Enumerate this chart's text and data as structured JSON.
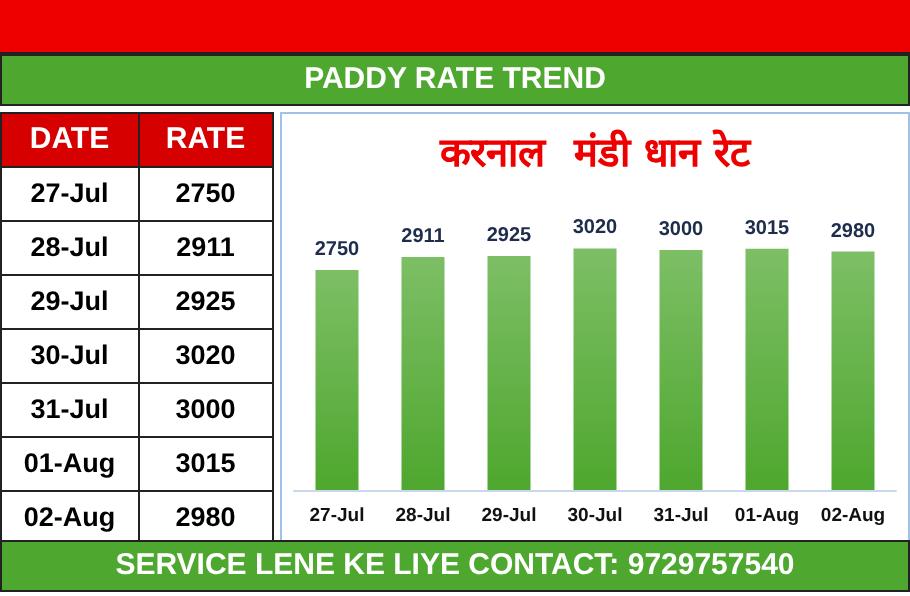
{
  "chart_data": {
    "type": "bar",
    "title": "PADDY RATE TREND",
    "subtitle": "करनाल  मंडी धान रेट",
    "categories": [
      "27-Jul",
      "28-Jul",
      "29-Jul",
      "30-Jul",
      "31-Jul",
      "01-Aug",
      "02-Aug"
    ],
    "values": [
      2750,
      2911,
      2925,
      3020,
      3000,
      3015,
      2980
    ],
    "value_labels": [
      "2750",
      "2911",
      "2925",
      "3020",
      "3000",
      "3015",
      "2980"
    ],
    "color": "#4ea72e",
    "annotations": [
      "DATE",
      "RATE",
      "SERVICE LENE KE LIYE CONTACT: 9729757540"
    ]
  }
}
